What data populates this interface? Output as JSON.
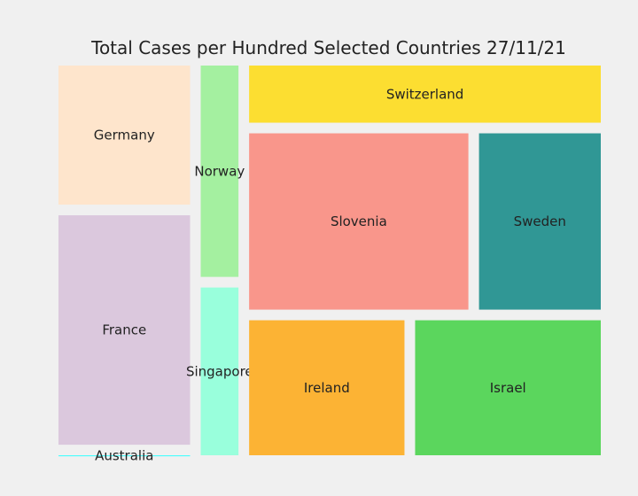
{
  "chart_data": {
    "type": "treemap",
    "title": "Total Cases per Hundred Selected Countries 27/11/21",
    "tiles": [
      {
        "label": "Australia",
        "value": 0.78,
        "color": "#33ffff"
      },
      {
        "label": "France",
        "value": 17.8,
        "color": "#dbc8dd"
      },
      {
        "label": "Germany",
        "value": 11.1,
        "color": "#fee5cc"
      },
      {
        "label": "Singapore",
        "value": 4.5,
        "color": "#99ffdc"
      },
      {
        "label": "Norway",
        "value": 5.6,
        "color": "#a4f0a0"
      },
      {
        "label": "Switzerland",
        "value": 12.8,
        "color": "#fcde31"
      },
      {
        "label": "Slovenia",
        "value": 22.4,
        "color": "#f9968b"
      },
      {
        "label": "Sweden",
        "value": 12.9,
        "color": "#309795"
      },
      {
        "label": "Ireland",
        "value": 12.6,
        "color": "#fcb334"
      },
      {
        "label": "Israel",
        "value": 14.9,
        "color": "#5bd65d"
      }
    ]
  }
}
